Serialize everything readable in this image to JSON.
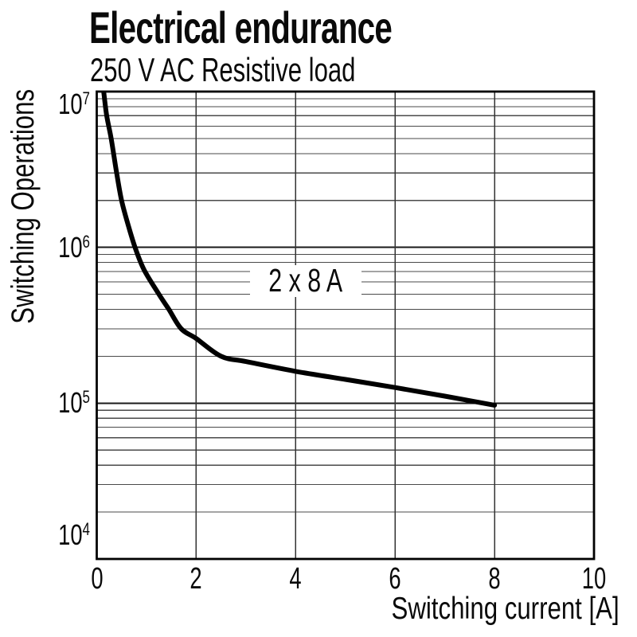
{
  "header": {
    "title": "Electrical endurance",
    "subtitle": "250 V AC Resistive load"
  },
  "chart_data": {
    "type": "line",
    "title": "Electrical endurance",
    "subtitle": "250 V AC Resistive load",
    "xlabel": "Switching current [A]",
    "ylabel": "Switching Operations",
    "x_axis": {
      "min": 0,
      "max": 10,
      "scale": "linear",
      "ticks": [
        0,
        2,
        4,
        6,
        8,
        10
      ]
    },
    "y_axis": {
      "min": 10000,
      "max": 10000000,
      "scale": "log",
      "ticks": [
        {
          "mantissa": "10",
          "exponent": "7",
          "value": 10000000
        },
        {
          "mantissa": "10",
          "exponent": "6",
          "value": 1000000
        },
        {
          "mantissa": "10",
          "exponent": "5",
          "value": 100000
        },
        {
          "mantissa": "10",
          "exponent": "4",
          "value": 10000
        }
      ]
    },
    "grid": {
      "x_major_lines": [
        2,
        4,
        6,
        8
      ],
      "y_major_lines": [
        100000,
        1000000
      ],
      "y_minor_decades": [
        10000,
        100000,
        1000000
      ],
      "y_minor_multiples": [
        2,
        3,
        4,
        5,
        6,
        7,
        8,
        9
      ]
    },
    "annotation": {
      "text": "2 x 8 A",
      "x": 4.2,
      "y": 610000
    },
    "series": [
      {
        "name": "250 V AC Resistive load",
        "color": "#000000",
        "points": [
          [
            0.14,
            10000000
          ],
          [
            0.2,
            7000000
          ],
          [
            0.29,
            5000000
          ],
          [
            0.4,
            3000000
          ],
          [
            0.5,
            2000000
          ],
          [
            0.63,
            1400000
          ],
          [
            0.77,
            1000000
          ],
          [
            0.95,
            720000
          ],
          [
            1.25,
            500000
          ],
          [
            1.45,
            400000
          ],
          [
            1.7,
            300000
          ],
          [
            2.0,
            260000
          ],
          [
            2.5,
            200000
          ],
          [
            3.0,
            185000
          ],
          [
            4.0,
            160000
          ],
          [
            5.0,
            142000
          ],
          [
            6.0,
            126000
          ],
          [
            7.0,
            111000
          ],
          [
            8.0,
            97000
          ]
        ]
      }
    ],
    "colors": {
      "line": "#000000",
      "grid_minor": "#4a4a4a",
      "grid_major": "#1a1a1a",
      "grid_vertical": "#333333",
      "frame": "#000000",
      "background": "#ffffff",
      "text": "#0a0a0a"
    }
  }
}
